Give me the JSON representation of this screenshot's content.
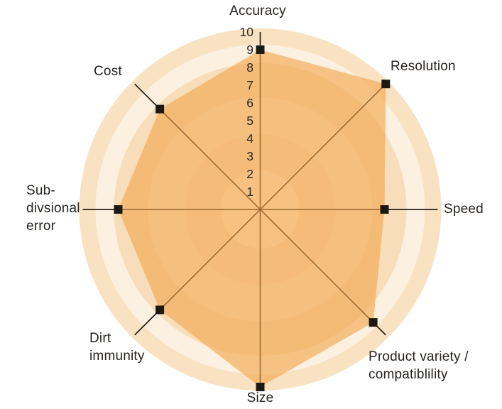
{
  "chart_data": {
    "type": "radar",
    "title": "",
    "axes": [
      {
        "label": "Accuracy",
        "value": 9
      },
      {
        "label": "Resolution",
        "value": 10
      },
      {
        "label": "Speed",
        "value": 7
      },
      {
        "label": "Product variety / compatiblility",
        "value": 9
      },
      {
        "label": "Size",
        "value": 10
      },
      {
        "label": "Dirt immunity",
        "value": 8
      },
      {
        "label": "Sub-divsional error",
        "value": 8
      },
      {
        "label": "Cost",
        "value": 8
      }
    ],
    "scale": {
      "min": 0,
      "max": 10,
      "ticks": [
        "10",
        "9",
        "8",
        "7",
        "6",
        "5",
        "4",
        "3",
        "2",
        "1"
      ]
    },
    "legend": "none",
    "grid": "concentric-rings",
    "colors": {
      "fill": "#F2A74C",
      "fill_opacity": 0.62,
      "marker": "#1C1914",
      "axis_line": "#241F19",
      "tick_text": "#2A2724",
      "label_text": "#262320",
      "ring_cream": "#F9E2C2",
      "ring_pale": "#FCF0E0"
    }
  },
  "labels": {
    "accuracy": "Accuracy",
    "resolution": "Resolution",
    "speed": "Speed",
    "product_variety": [
      "Product variety /",
      "compatiblility"
    ],
    "size": "Size",
    "dirt_immunity": [
      "Dirt",
      "immunity"
    ],
    "subdivisional_error": [
      "Sub-",
      "divsional",
      "error"
    ],
    "cost": "Cost"
  }
}
